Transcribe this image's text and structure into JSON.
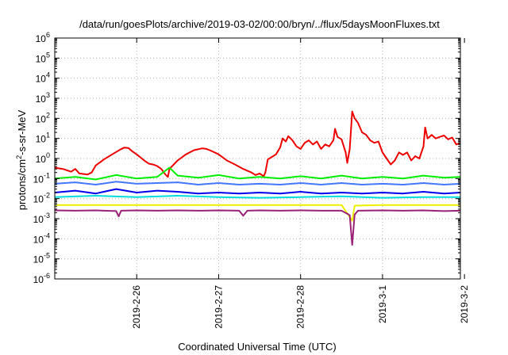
{
  "chart_data": {
    "type": "line",
    "title": "/data/run/goesPlots/archive/2019-03-02/00:00/bryn/../flux/5daysMoonFluxes.txt",
    "xlabel": "Coordinated Universal Time (UTC)",
    "ylabel": "protons/cm²-s-sr-MeV",
    "y_scale": "log",
    "xlim": [
      0,
      4.95
    ],
    "ylim_exponent": [
      -6,
      6
    ],
    "x_tick_labels": [
      "2019-2-26",
      "2019-2-27",
      "2019-2-28",
      "2019-3-1",
      "2019-3-2"
    ],
    "x_tick_positions": [
      1,
      2,
      3,
      4,
      5
    ],
    "y_tick_labels": [
      {
        "base": "10",
        "exp": "-6"
      },
      {
        "base": "10",
        "exp": "-5"
      },
      {
        "base": "10",
        "exp": "-4"
      },
      {
        "base": "10",
        "exp": "-3"
      },
      {
        "base": "10",
        "exp": "-2"
      },
      {
        "base": "10",
        "exp": "-1"
      },
      {
        "base": "10",
        "exp": "0"
      },
      {
        "base": "10",
        "exp": "1"
      },
      {
        "base": "10",
        "exp": "2"
      },
      {
        "base": "10",
        "exp": "3"
      },
      {
        "base": "10",
        "exp": "4"
      },
      {
        "base": "10",
        "exp": "5"
      },
      {
        "base": "10",
        "exp": "6"
      }
    ],
    "grid": true,
    "series": [
      {
        "color": "#ee0000",
        "points": [
          [
            0.0,
            0.35
          ],
          [
            0.1,
            0.3
          ],
          [
            0.2,
            0.22
          ],
          [
            0.25,
            0.3
          ],
          [
            0.3,
            0.18
          ],
          [
            0.4,
            0.16
          ],
          [
            0.45,
            0.2
          ],
          [
            0.5,
            0.45
          ],
          [
            0.6,
            0.9
          ],
          [
            0.7,
            1.6
          ],
          [
            0.8,
            2.8
          ],
          [
            0.85,
            3.5
          ],
          [
            0.9,
            3.3
          ],
          [
            0.95,
            2.2
          ],
          [
            1.0,
            1.6
          ],
          [
            1.05,
            1.1
          ],
          [
            1.1,
            0.75
          ],
          [
            1.15,
            0.55
          ],
          [
            1.2,
            0.5
          ],
          [
            1.25,
            0.42
          ],
          [
            1.3,
            0.3
          ],
          [
            1.35,
            0.16
          ],
          [
            1.38,
            0.12
          ],
          [
            1.4,
            0.3
          ],
          [
            1.5,
            0.8
          ],
          [
            1.6,
            1.6
          ],
          [
            1.7,
            2.6
          ],
          [
            1.8,
            3.2
          ],
          [
            1.85,
            3.0
          ],
          [
            1.9,
            2.5
          ],
          [
            2.0,
            1.6
          ],
          [
            2.1,
            0.8
          ],
          [
            2.2,
            0.5
          ],
          [
            2.3,
            0.3
          ],
          [
            2.4,
            0.2
          ],
          [
            2.45,
            0.15
          ],
          [
            2.5,
            0.18
          ],
          [
            2.55,
            0.13
          ],
          [
            2.57,
            0.2
          ],
          [
            2.6,
            0.9
          ],
          [
            2.65,
            1.2
          ],
          [
            2.7,
            1.6
          ],
          [
            2.75,
            3.5
          ],
          [
            2.78,
            10
          ],
          [
            2.82,
            7
          ],
          [
            2.85,
            13
          ],
          [
            2.9,
            8
          ],
          [
            2.95,
            4
          ],
          [
            3.0,
            3
          ],
          [
            3.05,
            6
          ],
          [
            3.1,
            8
          ],
          [
            3.15,
            5
          ],
          [
            3.2,
            7
          ],
          [
            3.25,
            3
          ],
          [
            3.3,
            5
          ],
          [
            3.35,
            4
          ],
          [
            3.4,
            8
          ],
          [
            3.42,
            30
          ],
          [
            3.45,
            12
          ],
          [
            3.5,
            9
          ],
          [
            3.55,
            2
          ],
          [
            3.57,
            0.6
          ],
          [
            3.6,
            3
          ],
          [
            3.63,
            220
          ],
          [
            3.66,
            100
          ],
          [
            3.7,
            60
          ],
          [
            3.75,
            20
          ],
          [
            3.8,
            15
          ],
          [
            3.85,
            8
          ],
          [
            3.9,
            6
          ],
          [
            3.95,
            7
          ],
          [
            4.0,
            2
          ],
          [
            4.05,
            1
          ],
          [
            4.1,
            0.5
          ],
          [
            4.15,
            0.8
          ],
          [
            4.2,
            2
          ],
          [
            4.25,
            1.5
          ],
          [
            4.3,
            2
          ],
          [
            4.35,
            0.8
          ],
          [
            4.4,
            1.3
          ],
          [
            4.45,
            1.0
          ],
          [
            4.5,
            4
          ],
          [
            4.52,
            35
          ],
          [
            4.55,
            10
          ],
          [
            4.6,
            15
          ],
          [
            4.65,
            10
          ],
          [
            4.7,
            12
          ],
          [
            4.75,
            14
          ],
          [
            4.8,
            9
          ],
          [
            4.85,
            11
          ],
          [
            4.9,
            5
          ],
          [
            4.95,
            6
          ]
        ]
      },
      {
        "color": "#00ee00",
        "points": [
          [
            0.0,
            0.1
          ],
          [
            0.25,
            0.12
          ],
          [
            0.5,
            0.09
          ],
          [
            0.75,
            0.15
          ],
          [
            1.0,
            0.1
          ],
          [
            1.25,
            0.12
          ],
          [
            1.4,
            0.35
          ],
          [
            1.5,
            0.14
          ],
          [
            1.75,
            0.11
          ],
          [
            2.0,
            0.15
          ],
          [
            2.25,
            0.1
          ],
          [
            2.5,
            0.12
          ],
          [
            2.75,
            0.1
          ],
          [
            3.0,
            0.13
          ],
          [
            3.25,
            0.1
          ],
          [
            3.5,
            0.14
          ],
          [
            3.75,
            0.1
          ],
          [
            4.0,
            0.12
          ],
          [
            4.25,
            0.1
          ],
          [
            4.5,
            0.14
          ],
          [
            4.75,
            0.11
          ],
          [
            4.95,
            0.12
          ]
        ]
      },
      {
        "color": "#4477ff",
        "points": [
          [
            0.0,
            0.055
          ],
          [
            0.25,
            0.065
          ],
          [
            0.5,
            0.05
          ],
          [
            0.75,
            0.07
          ],
          [
            1.0,
            0.055
          ],
          [
            1.25,
            0.06
          ],
          [
            1.5,
            0.065
          ],
          [
            1.75,
            0.05
          ],
          [
            2.0,
            0.06
          ],
          [
            2.25,
            0.05
          ],
          [
            2.5,
            0.055
          ],
          [
            2.75,
            0.05
          ],
          [
            3.0,
            0.06
          ],
          [
            3.25,
            0.05
          ],
          [
            3.5,
            0.06
          ],
          [
            3.75,
            0.05
          ],
          [
            4.0,
            0.055
          ],
          [
            4.25,
            0.05
          ],
          [
            4.5,
            0.06
          ],
          [
            4.75,
            0.05
          ],
          [
            4.95,
            0.055
          ]
        ]
      },
      {
        "color": "#00dddd",
        "points": [
          [
            0.0,
            0.012
          ],
          [
            0.5,
            0.014
          ],
          [
            1.0,
            0.012
          ],
          [
            1.5,
            0.014
          ],
          [
            2.0,
            0.012
          ],
          [
            2.5,
            0.011
          ],
          [
            3.0,
            0.012
          ],
          [
            3.5,
            0.013
          ],
          [
            4.0,
            0.011
          ],
          [
            4.5,
            0.012
          ],
          [
            4.95,
            0.012
          ]
        ]
      },
      {
        "color": "#0000ee",
        "points": [
          [
            0.0,
            0.02
          ],
          [
            0.25,
            0.025
          ],
          [
            0.5,
            0.018
          ],
          [
            0.75,
            0.03
          ],
          [
            1.0,
            0.02
          ],
          [
            1.25,
            0.025
          ],
          [
            1.5,
            0.022
          ],
          [
            1.75,
            0.018
          ],
          [
            2.0,
            0.02
          ],
          [
            2.25,
            0.018
          ],
          [
            2.5,
            0.02
          ],
          [
            2.75,
            0.018
          ],
          [
            3.0,
            0.022
          ],
          [
            3.25,
            0.018
          ],
          [
            3.5,
            0.02
          ],
          [
            3.75,
            0.018
          ],
          [
            4.0,
            0.02
          ],
          [
            4.25,
            0.018
          ],
          [
            4.5,
            0.022
          ],
          [
            4.75,
            0.018
          ],
          [
            4.95,
            0.02
          ]
        ]
      },
      {
        "color": "#eeee00",
        "points": [
          [
            0.0,
            0.0048
          ],
          [
            1.0,
            0.0048
          ],
          [
            2.0,
            0.0048
          ],
          [
            3.0,
            0.0048
          ],
          [
            3.5,
            0.0048
          ],
          [
            3.63,
            0.0008
          ],
          [
            3.66,
            0.0045
          ],
          [
            4.0,
            0.0048
          ],
          [
            4.95,
            0.0048
          ]
        ]
      },
      {
        "color": "#992277",
        "points": [
          [
            0.0,
            0.0026
          ],
          [
            0.25,
            0.0025
          ],
          [
            0.5,
            0.0026
          ],
          [
            0.75,
            0.0024
          ],
          [
            0.78,
            0.0013
          ],
          [
            0.81,
            0.0025
          ],
          [
            1.0,
            0.0026
          ],
          [
            1.25,
            0.0025
          ],
          [
            1.5,
            0.0026
          ],
          [
            1.75,
            0.0025
          ],
          [
            2.0,
            0.0026
          ],
          [
            2.25,
            0.0025
          ],
          [
            2.3,
            0.0014
          ],
          [
            2.35,
            0.0025
          ],
          [
            2.5,
            0.0026
          ],
          [
            2.75,
            0.0025
          ],
          [
            3.0,
            0.0026
          ],
          [
            3.25,
            0.0025
          ],
          [
            3.5,
            0.0025
          ],
          [
            3.6,
            0.0015
          ],
          [
            3.63,
            5e-05
          ],
          [
            3.66,
            0.0016
          ],
          [
            3.7,
            0.0025
          ],
          [
            4.0,
            0.0026
          ],
          [
            4.25,
            0.0025
          ],
          [
            4.5,
            0.0026
          ],
          [
            4.75,
            0.0024
          ],
          [
            4.95,
            0.0025
          ]
        ]
      }
    ]
  }
}
